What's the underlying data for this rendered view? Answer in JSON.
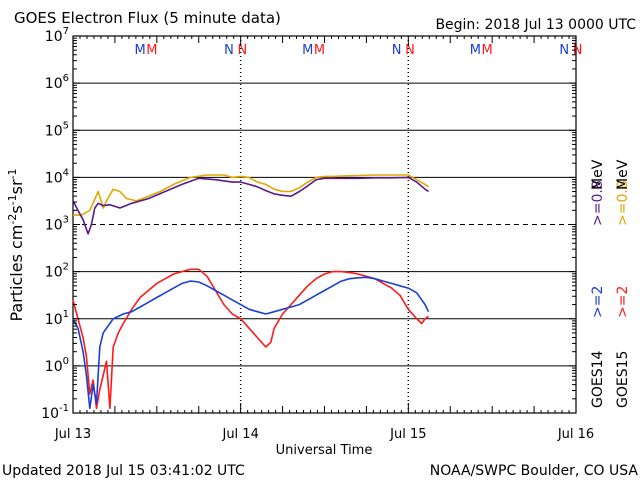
{
  "header": {
    "title": "GOES Electron Flux (5 minute data)",
    "begin": "Begin: 2018 Jul 13 0000 UTC"
  },
  "footer": {
    "updated": "Updated 2018 Jul 15 03:41:02 UTC",
    "credit": "NOAA/SWPC Boulder, CO USA"
  },
  "legend": {
    "goes14": "GOES14",
    "goes15": "GOES15",
    "goes14_low": ">=2",
    "goes14_high": ">=0.8",
    "goes15_low": ">=2",
    "goes15_high": ">=0.8",
    "unit": "MeV"
  },
  "colors": {
    "goes14_2mev": "#1a3fd6",
    "goes15_2mev": "#ff1a1a",
    "goes14_08mev": "#5a1a8a",
    "goes15_08mev": "#e0a800",
    "marker_m_blue": "#1a3fd6",
    "marker_m_red": "#ff1a1a",
    "grid": "#000000"
  },
  "markers": [
    {
      "day": 0.4,
      "letter": "M",
      "color": "#1a3fd6"
    },
    {
      "day": 0.47,
      "letter": "M",
      "color": "#ff1a1a"
    },
    {
      "day": 0.93,
      "letter": "N",
      "color": "#1a3fd6"
    },
    {
      "day": 1.01,
      "letter": "N",
      "color": "#ff1a1a"
    },
    {
      "day": 1.4,
      "letter": "M",
      "color": "#1a3fd6"
    },
    {
      "day": 1.47,
      "letter": "M",
      "color": "#ff1a1a"
    },
    {
      "day": 1.93,
      "letter": "N",
      "color": "#1a3fd6"
    },
    {
      "day": 2.01,
      "letter": "N",
      "color": "#ff1a1a"
    },
    {
      "day": 2.4,
      "letter": "M",
      "color": "#1a3fd6"
    },
    {
      "day": 2.47,
      "letter": "M",
      "color": "#ff1a1a"
    },
    {
      "day": 2.93,
      "letter": "N",
      "color": "#1a3fd6"
    },
    {
      "day": 3.01,
      "letter": "N",
      "color": "#ff1a1a"
    }
  ],
  "chart_data": {
    "type": "line",
    "title": "GOES Electron Flux (5 minute data)",
    "xlabel": "Universal Time",
    "ylabel": "Particles cm-2s-1sr-1",
    "x_ticks": [
      "Jul 13",
      "Jul 14",
      "Jul 15",
      "Jul 16"
    ],
    "y_ticks": [
      "10-1",
      "100",
      "101",
      "102",
      "103",
      "104",
      "105",
      "106",
      "107"
    ],
    "x_unit": "days since Jul 13 0000 UTC",
    "xlim": [
      0,
      3
    ],
    "ylim_log10": [
      -1,
      7
    ],
    "y_scale": "log",
    "threshold_log10": 3,
    "series": [
      {
        "name": "GOES15 >=0.8 MeV",
        "color": "#e0a800",
        "x": [
          0.0,
          0.05,
          0.1,
          0.15,
          0.18,
          0.2,
          0.24,
          0.28,
          0.32,
          0.38,
          0.45,
          0.52,
          0.6,
          0.7,
          0.8,
          0.9,
          0.95,
          1.0,
          1.05,
          1.1,
          1.15,
          1.2,
          1.25,
          1.3,
          1.35,
          1.4,
          1.45,
          1.5,
          1.55,
          1.6,
          1.7,
          1.8,
          1.9,
          2.0,
          2.05,
          2.1,
          2.12
        ],
        "y": [
          3.2,
          3.2,
          3.3,
          3.7,
          3.35,
          3.5,
          3.75,
          3.7,
          3.55,
          3.5,
          3.6,
          3.7,
          3.85,
          4.0,
          4.05,
          4.05,
          4.0,
          4.02,
          4.0,
          3.9,
          3.85,
          3.75,
          3.7,
          3.7,
          3.78,
          3.9,
          4.0,
          4.02,
          4.02,
          4.03,
          4.04,
          4.05,
          4.05,
          4.05,
          3.95,
          3.85,
          3.8
        ]
      },
      {
        "name": "GOES14 >=0.8 MeV",
        "color": "#5a1a8a",
        "x": [
          0.0,
          0.03,
          0.06,
          0.09,
          0.11,
          0.13,
          0.15,
          0.18,
          0.22,
          0.28,
          0.35,
          0.45,
          0.55,
          0.65,
          0.75,
          0.85,
          0.95,
          1.0,
          1.05,
          1.1,
          1.15,
          1.2,
          1.25,
          1.3,
          1.35,
          1.4,
          1.45,
          1.5,
          1.55,
          1.6,
          1.7,
          1.8,
          1.9,
          2.0,
          2.05,
          2.1,
          2.12
        ],
        "y": [
          3.5,
          3.3,
          3.1,
          2.8,
          3.0,
          3.35,
          3.45,
          3.4,
          3.42,
          3.35,
          3.45,
          3.55,
          3.7,
          3.85,
          3.98,
          3.95,
          3.9,
          3.9,
          3.85,
          3.8,
          3.72,
          3.65,
          3.62,
          3.6,
          3.7,
          3.82,
          3.95,
          3.98,
          3.98,
          3.98,
          3.98,
          3.99,
          3.99,
          4.0,
          3.9,
          3.75,
          3.7
        ]
      },
      {
        "name": "GOES15 >=2 MeV",
        "color": "#ff1a1a",
        "x": [
          0.0,
          0.03,
          0.06,
          0.08,
          0.1,
          0.12,
          0.14,
          0.16,
          0.18,
          0.2,
          0.22,
          0.24,
          0.27,
          0.3,
          0.35,
          0.4,
          0.45,
          0.5,
          0.55,
          0.6,
          0.65,
          0.7,
          0.75,
          0.8,
          0.85,
          0.9,
          0.95,
          1.0,
          1.05,
          1.1,
          1.15,
          1.18,
          1.2,
          1.25,
          1.3,
          1.35,
          1.4,
          1.45,
          1.5,
          1.55,
          1.6,
          1.65,
          1.7,
          1.75,
          1.8,
          1.85,
          1.9,
          1.95,
          2.0,
          2.05,
          2.08,
          2.1,
          2.12
        ],
        "y": [
          1.4,
          1.0,
          0.6,
          0.2,
          -0.6,
          -0.3,
          -0.9,
          -0.5,
          -0.2,
          0.1,
          -0.9,
          0.4,
          0.7,
          0.9,
          1.2,
          1.45,
          1.6,
          1.75,
          1.85,
          1.95,
          2.0,
          2.05,
          2.05,
          1.9,
          1.6,
          1.3,
          1.1,
          1.0,
          0.8,
          0.6,
          0.4,
          0.5,
          0.8,
          1.1,
          1.3,
          1.5,
          1.7,
          1.85,
          1.95,
          2.0,
          2.0,
          1.98,
          1.95,
          1.9,
          1.85,
          1.75,
          1.65,
          1.5,
          1.2,
          1.0,
          0.9,
          1.0,
          1.05
        ]
      },
      {
        "name": "GOES14 >=2 MeV",
        "color": "#1a3fd6",
        "x": [
          0.0,
          0.03,
          0.06,
          0.08,
          0.1,
          0.12,
          0.14,
          0.16,
          0.18,
          0.2,
          0.22,
          0.24,
          0.27,
          0.3,
          0.35,
          0.4,
          0.45,
          0.5,
          0.55,
          0.6,
          0.65,
          0.7,
          0.75,
          0.8,
          0.85,
          0.9,
          0.95,
          1.0,
          1.05,
          1.1,
          1.15,
          1.2,
          1.25,
          1.3,
          1.35,
          1.4,
          1.45,
          1.5,
          1.55,
          1.6,
          1.65,
          1.7,
          1.75,
          1.8,
          1.85,
          1.9,
          1.95,
          2.0,
          2.05,
          2.08,
          2.1,
          2.12
        ],
        "y": [
          1.0,
          0.8,
          0.3,
          -0.2,
          -0.9,
          -0.4,
          -0.8,
          0.4,
          0.7,
          0.8,
          0.9,
          1.0,
          1.05,
          1.1,
          1.15,
          1.25,
          1.35,
          1.45,
          1.55,
          1.65,
          1.75,
          1.8,
          1.78,
          1.7,
          1.6,
          1.5,
          1.4,
          1.3,
          1.2,
          1.15,
          1.1,
          1.15,
          1.2,
          1.25,
          1.3,
          1.4,
          1.5,
          1.6,
          1.7,
          1.8,
          1.85,
          1.87,
          1.88,
          1.85,
          1.8,
          1.75,
          1.7,
          1.65,
          1.55,
          1.4,
          1.3,
          1.15
        ]
      }
    ]
  }
}
